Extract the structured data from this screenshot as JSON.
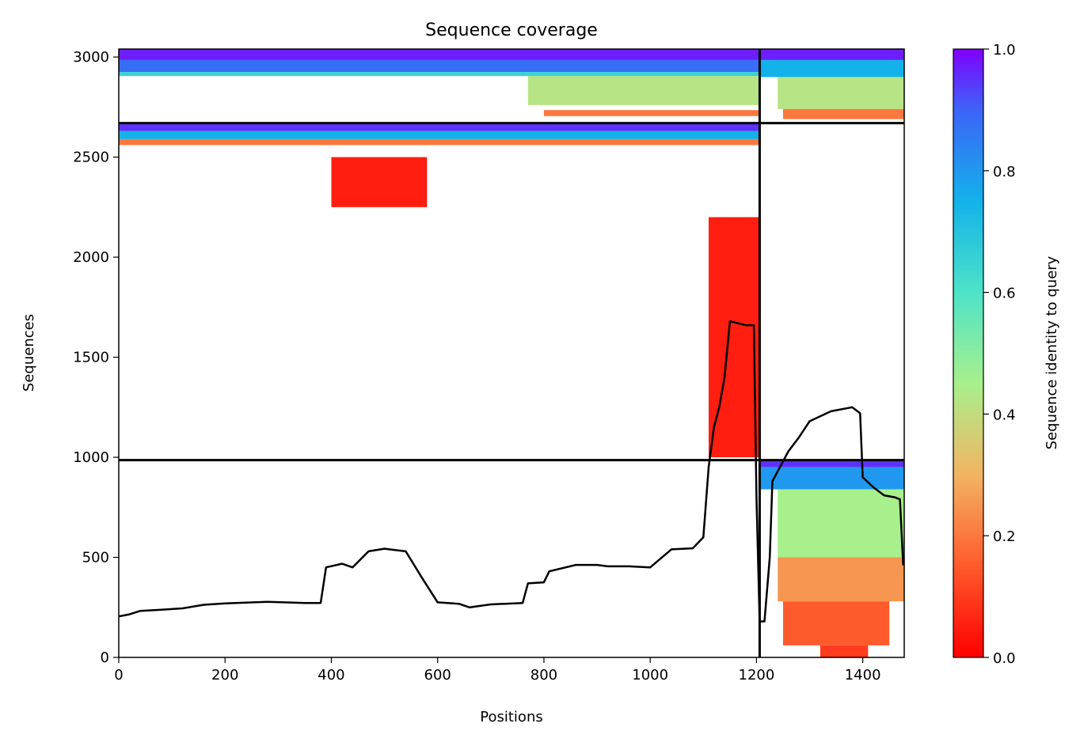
{
  "chart_data": {
    "type": "heatmap",
    "title": "Sequence coverage",
    "xlabel": "Positions",
    "ylabel": "Sequences",
    "xlim": [
      0,
      1478
    ],
    "ylim": [
      0,
      3040
    ],
    "xticks": [
      0,
      200,
      400,
      600,
      800,
      1000,
      1200,
      1400
    ],
    "yticks": [
      0,
      500,
      1000,
      1500,
      2000,
      2500,
      3000
    ],
    "colorbar": {
      "label": "Sequence identity to query",
      "range": [
        0.0,
        1.0
      ],
      "ticks": [
        "0.0",
        "0.2",
        "0.4",
        "0.6",
        "0.8",
        "1.0"
      ],
      "colormap": "rainbow_r"
    },
    "chain_boundaries": {
      "x": [
        1206
      ],
      "y": [
        986,
        2670
      ]
    },
    "coverage_line": {
      "color": "#000000",
      "points": [
        [
          0,
          205
        ],
        [
          20,
          215
        ],
        [
          40,
          232
        ],
        [
          80,
          238
        ],
        [
          120,
          245
        ],
        [
          160,
          263
        ],
        [
          200,
          270
        ],
        [
          280,
          278
        ],
        [
          350,
          272
        ],
        [
          380,
          272
        ],
        [
          390,
          450
        ],
        [
          420,
          468
        ],
        [
          440,
          450
        ],
        [
          470,
          530
        ],
        [
          500,
          543
        ],
        [
          540,
          530
        ],
        [
          570,
          400
        ],
        [
          600,
          275
        ],
        [
          640,
          268
        ],
        [
          660,
          250
        ],
        [
          700,
          265
        ],
        [
          760,
          272
        ],
        [
          770,
          370
        ],
        [
          800,
          375
        ],
        [
          810,
          430
        ],
        [
          860,
          462
        ],
        [
          900,
          462
        ],
        [
          920,
          455
        ],
        [
          960,
          455
        ],
        [
          1000,
          450
        ],
        [
          1040,
          540
        ],
        [
          1080,
          545
        ],
        [
          1100,
          600
        ],
        [
          1110,
          950
        ],
        [
          1120,
          1150
        ],
        [
          1130,
          1250
        ],
        [
          1140,
          1400
        ],
        [
          1150,
          1680
        ],
        [
          1180,
          1660
        ],
        [
          1195,
          1660
        ],
        [
          1200,
          800
        ],
        [
          1206,
          180
        ],
        [
          1215,
          180
        ],
        [
          1225,
          500
        ],
        [
          1230,
          880
        ],
        [
          1260,
          1030
        ],
        [
          1280,
          1100
        ],
        [
          1300,
          1180
        ],
        [
          1340,
          1230
        ],
        [
          1380,
          1250
        ],
        [
          1395,
          1220
        ],
        [
          1400,
          900
        ],
        [
          1420,
          850
        ],
        [
          1440,
          810
        ],
        [
          1460,
          800
        ],
        [
          1470,
          790
        ],
        [
          1476,
          460
        ]
      ]
    },
    "identity_bands": [
      {
        "chain": "A",
        "identity": 0.97,
        "x": [
          0,
          1206
        ],
        "y": [
          2985,
          3040
        ]
      },
      {
        "chain": "A",
        "identity": 0.88,
        "x": [
          0,
          1206
        ],
        "y": [
          2925,
          2985
        ]
      },
      {
        "chain": "A",
        "identity": 0.65,
        "x": [
          0,
          1206
        ],
        "y": [
          2905,
          2925
        ]
      },
      {
        "chain": "A",
        "identity": 0.42,
        "x": [
          770,
          1206
        ],
        "y": [
          2760,
          2905
        ]
      },
      {
        "chain": "A",
        "identity": 0.2,
        "x": [
          800,
          1206
        ],
        "y": [
          2705,
          2735
        ]
      },
      {
        "chain": "B",
        "identity": 0.97,
        "x": [
          1206,
          1478
        ],
        "y": [
          2985,
          3040
        ]
      },
      {
        "chain": "B",
        "identity": 0.75,
        "x": [
          1206,
          1478
        ],
        "y": [
          2900,
          2985
        ]
      },
      {
        "chain": "B",
        "identity": 0.42,
        "x": [
          1240,
          1478
        ],
        "y": [
          2740,
          2900
        ]
      },
      {
        "chain": "B",
        "identity": 0.2,
        "x": [
          1250,
          1478
        ],
        "y": [
          2690,
          2740
        ]
      },
      {
        "chain": "A",
        "identity": 0.95,
        "x": [
          0,
          1206
        ],
        "y": [
          2630,
          2670
        ]
      },
      {
        "chain": "A",
        "identity": 0.75,
        "x": [
          0,
          1206
        ],
        "y": [
          2590,
          2630
        ]
      },
      {
        "chain": "A",
        "identity": 0.2,
        "x": [
          0,
          1206
        ],
        "y": [
          2560,
          2590
        ]
      },
      {
        "chain": "A",
        "identity": 0.05,
        "x": [
          400,
          580
        ],
        "y": [
          2250,
          2500
        ]
      },
      {
        "chain": "A",
        "identity": 0.05,
        "x": [
          1110,
          1206
        ],
        "y": [
          1000,
          2200
        ]
      },
      {
        "chain": "B",
        "identity": 0.95,
        "x": [
          1206,
          1478
        ],
        "y": [
          950,
          986
        ]
      },
      {
        "chain": "B",
        "identity": 0.8,
        "x": [
          1206,
          1478
        ],
        "y": [
          840,
          950
        ]
      },
      {
        "chain": "B",
        "identity": 0.45,
        "x": [
          1240,
          1478
        ],
        "y": [
          500,
          840
        ]
      },
      {
        "chain": "B",
        "identity": 0.25,
        "x": [
          1240,
          1478
        ],
        "y": [
          280,
          500
        ]
      },
      {
        "chain": "B",
        "identity": 0.15,
        "x": [
          1250,
          1450
        ],
        "y": [
          60,
          280
        ]
      },
      {
        "chain": "B",
        "identity": 0.1,
        "x": [
          1320,
          1410
        ],
        "y": [
          0,
          60
        ]
      }
    ]
  }
}
